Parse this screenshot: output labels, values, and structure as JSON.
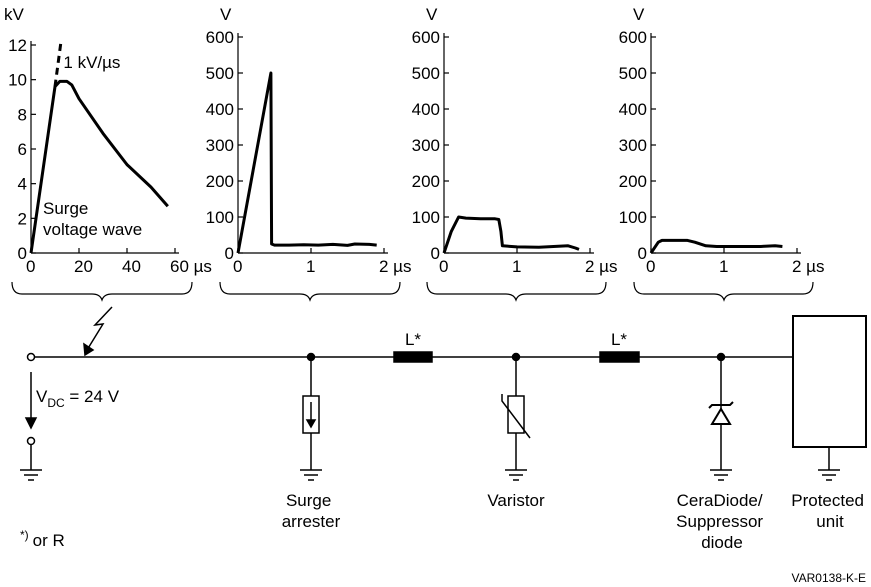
{
  "chart_data": [
    {
      "type": "line",
      "ylabel": "kV",
      "yticks": [
        "0",
        "2",
        "4",
        "6",
        "8",
        "10",
        "12"
      ],
      "xticks": [
        "0",
        "20",
        "40",
        "60 µs"
      ],
      "xlim": [
        0,
        60
      ],
      "ylim": [
        0,
        12
      ],
      "x_unit": "µs",
      "y_unit": "kV",
      "annotations": [
        "1 kV/µs",
        "Surge",
        "voltage wave"
      ],
      "series": [
        {
          "x": [
            0,
            10,
            12,
            15,
            17,
            20,
            30,
            40,
            50,
            57
          ],
          "y": [
            0,
            9.6,
            9.9,
            9.9,
            9.7,
            8.9,
            6.9,
            5.1,
            3.8,
            2.7
          ]
        },
        {
          "x": [
            10,
            12.5
          ],
          "y": [
            9.6,
            12.2
          ]
        }
      ]
    },
    {
      "type": "line",
      "ylabel": "V",
      "yticks": [
        "0",
        "100",
        "200",
        "300",
        "400",
        "500",
        "600"
      ],
      "xticks": [
        "0",
        "1",
        "2 µs"
      ],
      "xlim": [
        0,
        2
      ],
      "ylim": [
        0,
        600
      ],
      "x_unit": "µs",
      "y_unit": "V",
      "series": [
        {
          "x": [
            0,
            0.45,
            0.46,
            0.5,
            0.7,
            0.9,
            1.1,
            1.3,
            1.5,
            1.6,
            1.8,
            1.9
          ],
          "y": [
            0,
            500,
            25,
            22,
            22,
            23,
            22,
            24,
            21,
            25,
            24,
            22
          ]
        }
      ]
    },
    {
      "type": "line",
      "ylabel": "V",
      "yticks": [
        "0",
        "100",
        "200",
        "300",
        "400",
        "500",
        "600"
      ],
      "xticks": [
        "0",
        "1",
        "2 µs"
      ],
      "xlim": [
        0,
        2
      ],
      "ylim": [
        0,
        600
      ],
      "x_unit": "µs",
      "y_unit": "V",
      "series": [
        {
          "x": [
            0,
            0.1,
            0.2,
            0.3,
            0.5,
            0.7,
            0.75,
            0.78,
            0.8,
            1.0,
            1.3,
            1.5,
            1.7,
            1.8,
            1.85
          ],
          "y": [
            0,
            60,
            100,
            97,
            95,
            95,
            93,
            60,
            20,
            17,
            16,
            18,
            20,
            14,
            10
          ]
        }
      ]
    },
    {
      "type": "line",
      "ylabel": "V",
      "yticks": [
        "0",
        "100",
        "200",
        "300",
        "400",
        "500",
        "600"
      ],
      "xticks": [
        "0",
        "1",
        "2 µs"
      ],
      "xlim": [
        0,
        2
      ],
      "ylim": [
        0,
        600
      ],
      "x_unit": "µs",
      "y_unit": "V",
      "series": [
        {
          "x": [
            0,
            0.1,
            0.15,
            0.3,
            0.5,
            0.6,
            0.75,
            0.9,
            1.2,
            1.5,
            1.7,
            1.8
          ],
          "y": [
            0,
            30,
            35,
            35,
            35,
            30,
            20,
            18,
            18,
            18,
            20,
            18
          ]
        }
      ]
    }
  ],
  "circuit": {
    "vdc_main": "V",
    "vdc_sub": "DC",
    "vdc_rest": " = 24 V",
    "inductor_1": "L*",
    "inductor_2": "L*",
    "surge_arrester": [
      "Surge",
      "arrester"
    ],
    "varistor": "Varistor",
    "ceradiode": [
      "CeraDiode/",
      "Suppressor",
      "diode"
    ],
    "protected_unit": [
      "Protected",
      "unit"
    ],
    "footnote_mark": "*)",
    "footnote_text": "or R",
    "figure_id": "VAR0138-K-E"
  }
}
